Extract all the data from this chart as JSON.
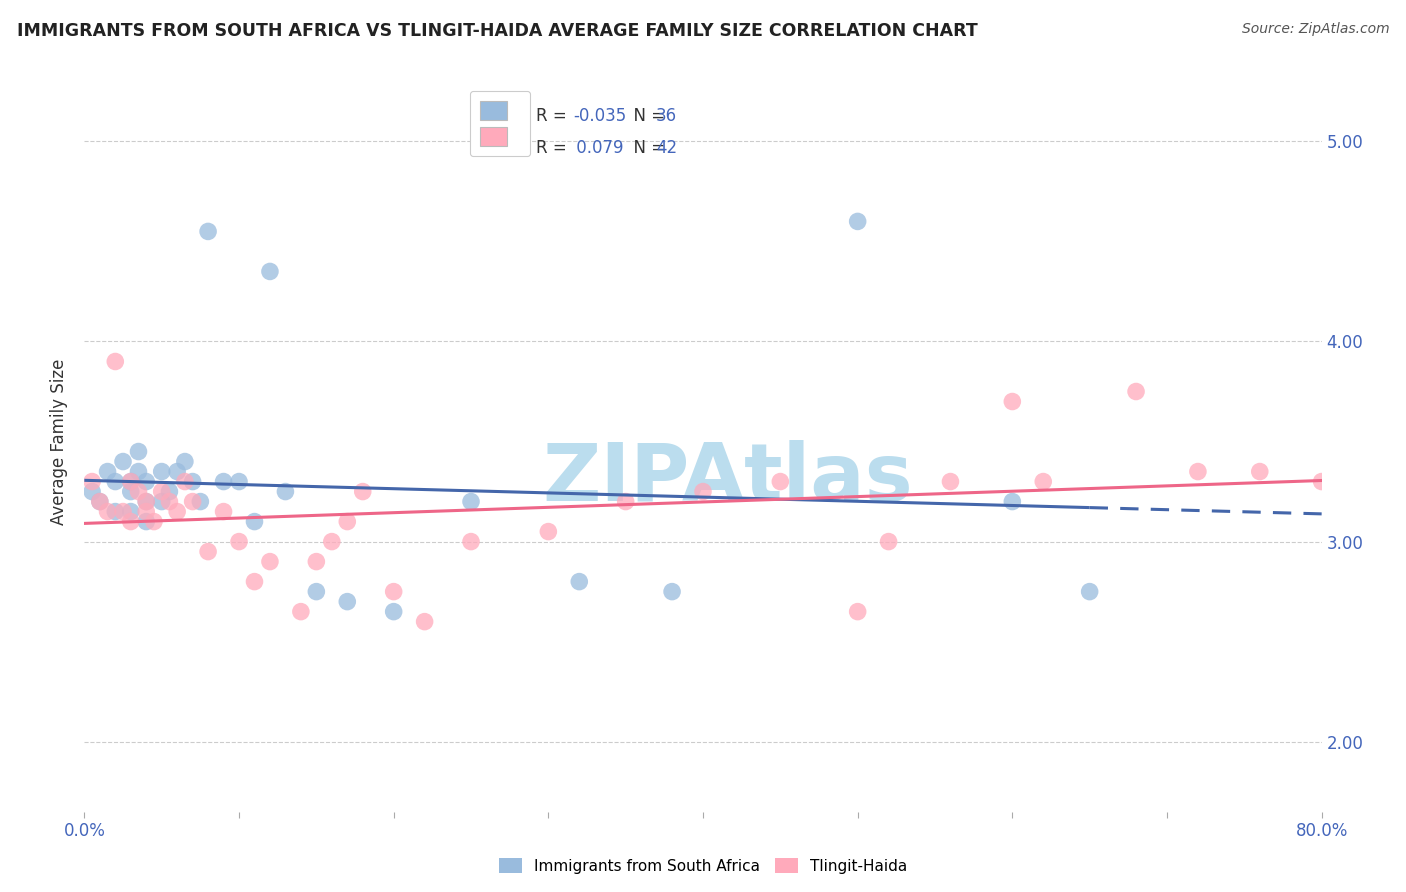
{
  "title": "IMMIGRANTS FROM SOUTH AFRICA VS TLINGIT-HAIDA AVERAGE FAMILY SIZE CORRELATION CHART",
  "source": "Source: ZipAtlas.com",
  "ylabel": "Average Family Size",
  "xlim": [
    0.0,
    0.8
  ],
  "ylim": [
    1.65,
    5.35
  ],
  "yticks_right": [
    2.0,
    3.0,
    4.0,
    5.0
  ],
  "xticks": [
    0.0,
    0.1,
    0.2,
    0.3,
    0.4,
    0.5,
    0.6,
    0.7,
    0.8
  ],
  "legend_R_blue": "-0.035",
  "legend_N_blue": "36",
  "legend_R_pink": "0.079",
  "legend_N_pink": "42",
  "blue_color": "#99BBDD",
  "pink_color": "#FFAABB",
  "blue_line_color": "#4466AA",
  "pink_line_color": "#EE6688",
  "watermark": "ZIPAtlas",
  "watermark_color": "#BBDDEE",
  "blue_scatter_x": [
    0.005,
    0.01,
    0.015,
    0.02,
    0.02,
    0.025,
    0.03,
    0.03,
    0.03,
    0.035,
    0.035,
    0.04,
    0.04,
    0.04,
    0.05,
    0.05,
    0.055,
    0.06,
    0.065,
    0.07,
    0.075,
    0.08,
    0.09,
    0.1,
    0.11,
    0.12,
    0.13,
    0.15,
    0.17,
    0.2,
    0.25,
    0.32,
    0.38,
    0.5,
    0.6,
    0.65
  ],
  "blue_scatter_y": [
    3.25,
    3.2,
    3.35,
    3.3,
    3.15,
    3.4,
    3.3,
    3.15,
    3.25,
    3.45,
    3.35,
    3.3,
    3.2,
    3.1,
    3.2,
    3.35,
    3.25,
    3.35,
    3.4,
    3.3,
    3.2,
    4.55,
    3.3,
    3.3,
    3.1,
    4.35,
    3.25,
    2.75,
    2.7,
    2.65,
    3.2,
    2.8,
    2.75,
    4.6,
    3.2,
    2.75
  ],
  "pink_scatter_x": [
    0.005,
    0.01,
    0.015,
    0.02,
    0.025,
    0.03,
    0.03,
    0.035,
    0.04,
    0.04,
    0.045,
    0.05,
    0.055,
    0.06,
    0.065,
    0.07,
    0.08,
    0.09,
    0.1,
    0.11,
    0.12,
    0.14,
    0.15,
    0.16,
    0.17,
    0.18,
    0.2,
    0.22,
    0.25,
    0.3,
    0.35,
    0.4,
    0.45,
    0.5,
    0.52,
    0.56,
    0.6,
    0.62,
    0.68,
    0.72,
    0.76,
    0.8
  ],
  "pink_scatter_y": [
    3.3,
    3.2,
    3.15,
    3.9,
    3.15,
    3.3,
    3.1,
    3.25,
    3.2,
    3.15,
    3.1,
    3.25,
    3.2,
    3.15,
    3.3,
    3.2,
    2.95,
    3.15,
    3.0,
    2.8,
    2.9,
    2.65,
    2.9,
    3.0,
    3.1,
    3.25,
    2.75,
    2.6,
    3.0,
    3.05,
    3.2,
    3.25,
    3.3,
    2.65,
    3.0,
    3.3,
    3.7,
    3.3,
    3.75,
    3.35,
    3.35,
    3.3
  ]
}
